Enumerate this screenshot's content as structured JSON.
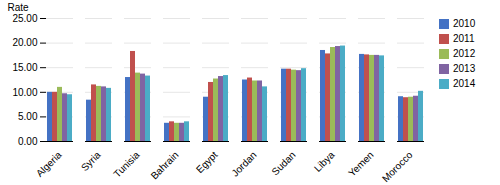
{
  "chart_data": {
    "type": "bar",
    "categories": [
      "Algeria",
      "Syria",
      "Tunisia",
      "Bahrain",
      "Egypt",
      "Jordan",
      "Sudan",
      "Libya",
      "Yemen",
      "Morocco"
    ],
    "series": [
      {
        "name": "2010",
        "color": "#4472C4",
        "values": [
          10.0,
          8.4,
          13.0,
          3.7,
          9.0,
          12.5,
          14.7,
          18.5,
          17.7,
          9.1
        ]
      },
      {
        "name": "2011",
        "color": "#C0504D",
        "values": [
          10.0,
          11.5,
          18.3,
          4.0,
          12.0,
          12.9,
          14.7,
          17.8,
          17.6,
          8.9
        ]
      },
      {
        "name": "2012",
        "color": "#9BBB59",
        "values": [
          11.0,
          11.2,
          13.9,
          3.7,
          12.7,
          12.3,
          14.5,
          19.1,
          17.5,
          9.0
        ]
      },
      {
        "name": "2013",
        "color": "#8064A2",
        "values": [
          9.7,
          11.1,
          13.7,
          3.7,
          13.2,
          12.3,
          14.4,
          19.3,
          17.5,
          9.2
        ]
      },
      {
        "name": "2014",
        "color": "#4BACC6",
        "values": [
          9.5,
          10.8,
          13.3,
          4.0,
          13.4,
          11.1,
          14.8,
          19.4,
          17.4,
          10.2
        ]
      }
    ],
    "ylabel": "Rate",
    "ylim": [
      0,
      25
    ],
    "yticks": [
      {
        "value": 0,
        "label": "0.00"
      },
      {
        "value": 5.0,
        "label": "5.00"
      },
      {
        "value": 10.0,
        "label": "10.00"
      },
      {
        "value": 15.0,
        "label": "15.00"
      },
      {
        "value": 20.0,
        "label": "20.00"
      },
      {
        "value": 25.0,
        "label": "25.00"
      }
    ],
    "grid": true,
    "legend": "right"
  }
}
